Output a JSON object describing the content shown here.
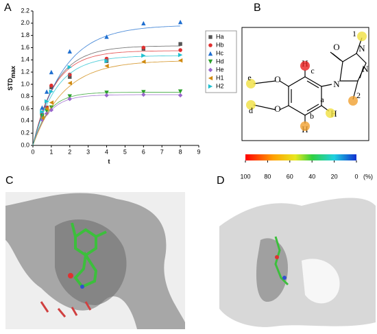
{
  "panel_labels": [
    "A",
    "B",
    "C",
    "D"
  ],
  "chart_data": {
    "type": "scatter",
    "x": [
      0.5,
      0.75,
      1,
      2,
      4,
      6,
      8
    ],
    "xlabel": "t",
    "ylabel": {
      "text": "STD",
      "subscript": "max"
    },
    "xlim": [
      0,
      9
    ],
    "xticks": [
      0,
      1,
      2,
      3,
      4,
      5,
      6,
      7,
      8,
      9
    ],
    "ylim": [
      0,
      2.2
    ],
    "yticks": [
      {
        "value": 0,
        "label": "0.0"
      },
      0.2,
      0.4,
      0.6,
      0.8,
      {
        "value": 1,
        "label": "1.0"
      },
      1.2,
      1.4,
      1.6,
      1.8,
      {
        "value": 2,
        "label": "2.0"
      },
      2.2
    ],
    "legend": "right",
    "series": [
      {
        "name": "Ha",
        "color": "#555555",
        "marker": "square",
        "values": [
          0.5,
          0.62,
          0.95,
          1.12,
          1.38,
          1.58,
          1.66
        ],
        "fit": {
          "max": 1.63,
          "rate": 0.8
        }
      },
      {
        "name": "Hb",
        "color": "#e03030",
        "marker": "circle",
        "values": [
          0.5,
          0.62,
          0.98,
          1.16,
          1.42,
          1.6,
          1.56
        ],
        "fit": {
          "max": 1.55,
          "rate": 0.85
        }
      },
      {
        "name": "Hc",
        "color": "#1f6fd0",
        "marker": "triangle-up",
        "values": [
          0.62,
          0.88,
          1.2,
          1.54,
          1.78,
          2.0,
          2.02
        ],
        "fit": {
          "max": 1.97,
          "rate": 0.6
        }
      },
      {
        "name": "Hd",
        "color": "#2ca02c",
        "marker": "triangle-down",
        "values": [
          0.48,
          0.56,
          0.62,
          0.8,
          0.86,
          0.87,
          0.88
        ],
        "fit": {
          "max": 0.87,
          "rate": 1.2
        }
      },
      {
        "name": "He",
        "color": "#9966cc",
        "marker": "diamond",
        "values": [
          0.42,
          0.52,
          0.58,
          0.76,
          0.82,
          0.83,
          0.82
        ],
        "fit": {
          "max": 0.83,
          "rate": 1.2
        }
      },
      {
        "name": "H1",
        "color": "#d08a10",
        "marker": "triangle-left",
        "values": [
          0.45,
          0.6,
          0.7,
          1.02,
          1.3,
          1.37,
          1.39
        ],
        "fit": {
          "max": 1.39,
          "rate": 0.6
        }
      },
      {
        "name": "H2",
        "color": "#20c0d0",
        "marker": "triangle-right",
        "values": [
          0.55,
          0.72,
          0.88,
          1.28,
          1.38,
          1.47,
          1.48
        ],
        "fit": {
          "max": 1.47,
          "rate": 0.8
        }
      }
    ]
  },
  "structure": {
    "atoms": [
      "O",
      "N",
      "N",
      "N",
      "O",
      "O",
      "H",
      "H",
      "H"
    ],
    "sites": [
      {
        "label": "c",
        "color": "#e82020"
      },
      {
        "label": "b",
        "color": "#f0a030"
      },
      {
        "label": "a",
        "color": "#f0e040"
      },
      {
        "label": "d",
        "color": "#f0e040"
      },
      {
        "label": "e",
        "color": "#f0e040"
      },
      {
        "label": "1",
        "color": "#f0e040"
      },
      {
        "label": "2",
        "color": "#f0a030"
      }
    ],
    "color_scale": {
      "lim": [
        100,
        0
      ],
      "ticks": [
        100,
        80,
        60,
        40,
        20,
        0
      ],
      "unit": "(%)"
    }
  }
}
